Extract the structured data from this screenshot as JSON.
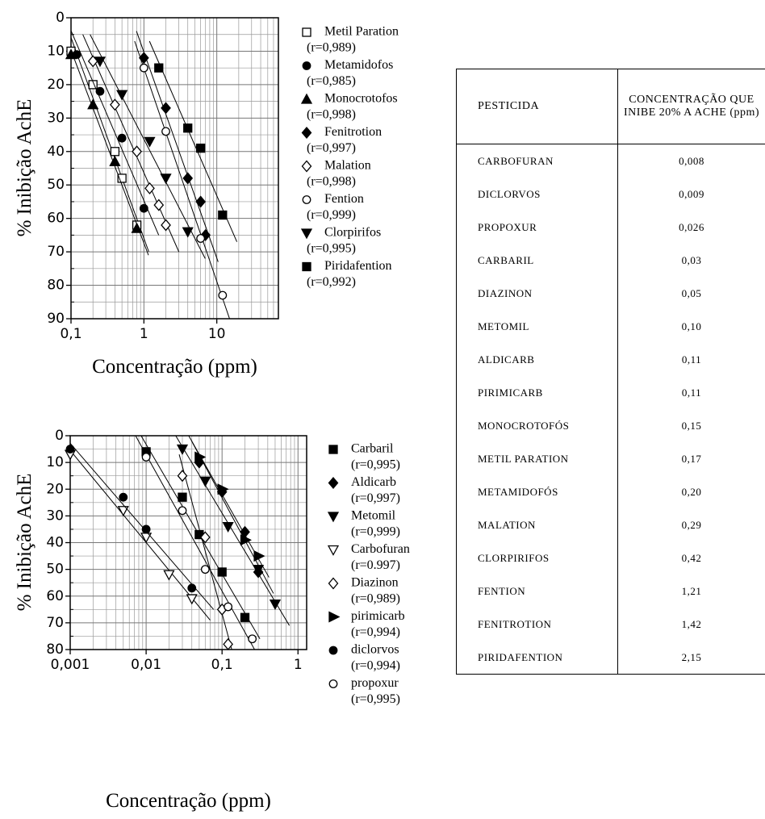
{
  "chart_data": [
    {
      "type": "scatter",
      "xlabel": "Concentração (ppm)",
      "ylabel": "% Inibição AchE",
      "xscale": "log",
      "grid": true,
      "xlim": [
        0.1,
        70
      ],
      "xticks": [
        {
          "value": 0.1,
          "label": "0,1"
        },
        1,
        10
      ],
      "xminor": [
        0.2,
        0.3,
        0.4,
        0.5,
        0.6,
        0.7,
        0.8,
        0.9,
        2,
        3,
        4,
        5,
        6,
        7,
        8,
        9,
        20,
        30,
        40,
        50,
        60,
        70
      ],
      "ylim": [
        90,
        0
      ],
      "yticks": [
        0,
        10,
        20,
        30,
        40,
        50,
        60,
        70,
        80,
        90
      ],
      "yminor": [
        5,
        15,
        25,
        35,
        45,
        55,
        65,
        75,
        85
      ],
      "series": [
        {
          "name": "Metil Paration",
          "note": "(r=0,989)",
          "marker": "square",
          "filled": false,
          "color": "#000",
          "x": [
            0.1,
            0.2,
            0.4,
            0.5,
            0.8
          ],
          "values": [
            10,
            20,
            40,
            48,
            62
          ]
        },
        {
          "name": "Metamidofos",
          "note": "(r=0,985)",
          "marker": "circle",
          "filled": true,
          "color": "#000",
          "x": [
            0.12,
            0.25,
            0.5,
            1.0
          ],
          "values": [
            11,
            22,
            36,
            57
          ]
        },
        {
          "name": "Monocrotofos",
          "note": "(r=0,998)",
          "marker": "triangle-up",
          "filled": true,
          "color": "#000",
          "x": [
            0.1,
            0.2,
            0.4,
            0.8
          ],
          "values": [
            11,
            26,
            43,
            63
          ]
        },
        {
          "name": "Fenitrotion",
          "note": "(r=0,997)",
          "marker": "diamond",
          "filled": true,
          "color": "#000",
          "x": [
            1,
            2,
            4,
            6,
            7
          ],
          "values": [
            12,
            27,
            48,
            55,
            65
          ]
        },
        {
          "name": "Malation",
          "note": "(r=0,998)",
          "marker": "diamond",
          "filled": false,
          "color": "#000",
          "x": [
            0.2,
            0.4,
            0.8,
            1.2,
            1.6,
            2
          ],
          "values": [
            13,
            26,
            40,
            51,
            56,
            62
          ]
        },
        {
          "name": "Fention",
          "note": "(r=0,999)",
          "marker": "circle",
          "filled": false,
          "color": "#000",
          "x": [
            1,
            2,
            6,
            12
          ],
          "values": [
            15,
            34,
            66,
            83
          ]
        },
        {
          "name": "Clorpirifos",
          "note": "(r=0,995)",
          "marker": "triangle-down",
          "filled": true,
          "color": "#000",
          "x": [
            0.25,
            0.5,
            1.2,
            2,
            4
          ],
          "values": [
            13,
            23,
            37,
            48,
            64
          ]
        },
        {
          "name": "Piridafention",
          "note": "(r=0,992)",
          "marker": "square",
          "filled": true,
          "color": "#000",
          "x": [
            1.6,
            4,
            6,
            12
          ],
          "values": [
            15,
            33,
            39,
            59
          ]
        }
      ]
    },
    {
      "type": "scatter",
      "xlabel": "Concentração (ppm)",
      "ylabel": "% Inibição AchE",
      "xscale": "log",
      "grid": true,
      "xlim": [
        0.001,
        1.3
      ],
      "xticks": [
        {
          "value": 0.001,
          "label": "0,001"
        },
        {
          "value": 0.01,
          "label": "0,01"
        },
        {
          "value": 0.1,
          "label": "0,1"
        },
        1
      ],
      "xminor": [
        0.002,
        0.003,
        0.004,
        0.005,
        0.006,
        0.007,
        0.008,
        0.009,
        0.02,
        0.03,
        0.04,
        0.05,
        0.06,
        0.07,
        0.08,
        0.09,
        0.2,
        0.3,
        0.4,
        0.5,
        0.6,
        0.7,
        0.8,
        0.9
      ],
      "ylim": [
        80,
        0
      ],
      "yticks": [
        0,
        10,
        20,
        30,
        40,
        50,
        60,
        70,
        80
      ],
      "yminor": [
        5,
        15,
        25,
        35,
        45,
        55,
        65,
        75
      ],
      "series": [
        {
          "name": "Carbaril",
          "note": "(r=0,995)",
          "marker": "square",
          "filled": true,
          "color": "#000",
          "x": [
            0.01,
            0.03,
            0.05,
            0.1,
            0.2
          ],
          "values": [
            6,
            23,
            37,
            51,
            68
          ]
        },
        {
          "name": "Aldicarb",
          "note": "(r=0,997)",
          "marker": "diamond",
          "filled": true,
          "color": "#000",
          "x": [
            0.05,
            0.1,
            0.2,
            0.3
          ],
          "values": [
            10,
            21,
            36,
            51
          ]
        },
        {
          "name": "Metomil",
          "note": "(r=0,999)",
          "marker": "triangle-down",
          "filled": true,
          "color": "#000",
          "x": [
            0.03,
            0.06,
            0.12,
            0.3,
            0.5
          ],
          "values": [
            5,
            17,
            34,
            50,
            63
          ]
        },
        {
          "name": "Carbofuran",
          "note": "(r=0.997)",
          "marker": "triangle-down",
          "filled": false,
          "color": "#000",
          "x": [
            0.001,
            0.005,
            0.01,
            0.02,
            0.04
          ],
          "values": [
            7,
            28,
            38,
            52,
            61
          ]
        },
        {
          "name": "Diazinon",
          "note": "(r=0,989)",
          "marker": "diamond",
          "filled": false,
          "color": "#000",
          "x": [
            0.03,
            0.06,
            0.1,
            0.12
          ],
          "values": [
            15,
            38,
            65,
            78
          ]
        },
        {
          "name": "pirimicarb",
          "note": "(r=0,994)",
          "marker": "triangle-right",
          "filled": true,
          "color": "#000",
          "x": [
            0.05,
            0.1,
            0.2,
            0.3
          ],
          "values": [
            8,
            20,
            39,
            45
          ]
        },
        {
          "name": "diclorvos",
          "note": "(r=0,994)",
          "marker": "circle",
          "filled": true,
          "color": "#000",
          "x": [
            0.001,
            0.005,
            0.01,
            0.04
          ],
          "values": [
            5,
            23,
            35,
            57
          ]
        },
        {
          "name": "propoxur",
          "note": "(r=0,995)",
          "marker": "circle",
          "filled": false,
          "color": "#000",
          "x": [
            0.01,
            0.03,
            0.06,
            0.12,
            0.25
          ],
          "values": [
            8,
            28,
            50,
            64,
            76
          ]
        }
      ]
    }
  ],
  "table": {
    "header": [
      "PESTICIDA",
      "CONCENTRAÇÃO QUE INIBE 20% A ACHE (ppm)"
    ],
    "rows": [
      [
        "CARBOFURAN",
        "0,008"
      ],
      [
        "DICLORVOS",
        "0,009"
      ],
      [
        "PROPOXUR",
        "0,026"
      ],
      [
        "CARBARIL",
        "0,03"
      ],
      [
        "DIAZINON",
        "0,05"
      ],
      [
        "METOMIL",
        "0,10"
      ],
      [
        "ALDICARB",
        "0,11"
      ],
      [
        "PIRIMICARB",
        "0,11"
      ],
      [
        "MONOCROTOFÓS",
        "0,15"
      ],
      [
        "METIL PARATION",
        "0,17"
      ],
      [
        "METAMIDOFÓS",
        "0,20"
      ],
      [
        "MALATION",
        "0,29"
      ],
      [
        "CLORPIRIFOS",
        "0,42"
      ],
      [
        "FENTION",
        "1,21"
      ],
      [
        "FENITROTION",
        "1,42"
      ],
      [
        "PIRIDAFENTION",
        "2,15"
      ]
    ]
  }
}
